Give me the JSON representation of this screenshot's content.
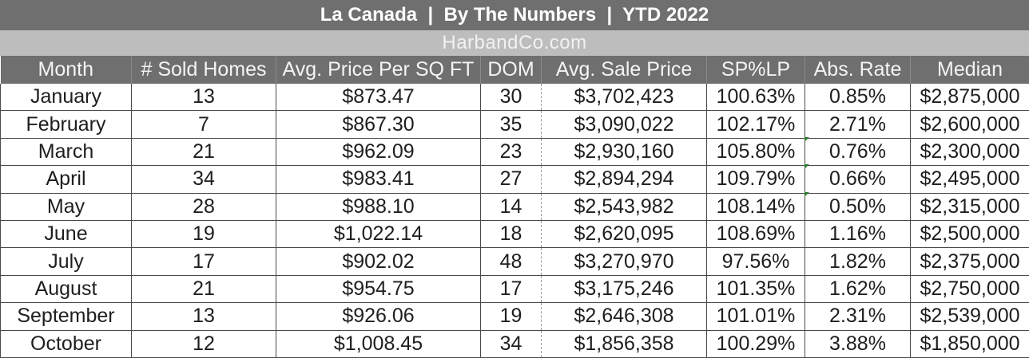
{
  "title": "La Canada  |  By The Numbers  |  YTD 2022",
  "subtitle": "HarbandCo.com",
  "columns": [
    "Month",
    "# Sold Homes",
    "Avg. Price Per SQ FT",
    "DOM",
    "Avg. Sale Price",
    "SP%LP",
    "Abs. Rate",
    "Median"
  ],
  "rows": [
    [
      "January",
      "13",
      "$873.47",
      "30",
      "$3,702,423",
      "100.63%",
      "0.85%",
      "$2,875,000"
    ],
    [
      "February",
      "7",
      "$867.30",
      "35",
      "$3,090,022",
      "102.17%",
      "2.71%",
      "$2,600,000"
    ],
    [
      "March",
      "21",
      "$962.09",
      "23",
      "$2,930,160",
      "105.80%",
      "0.76%",
      "$2,300,000"
    ],
    [
      "April",
      "34",
      "$983.41",
      "27",
      "$2,894,294",
      "109.79%",
      "0.66%",
      "$2,495,000"
    ],
    [
      "May",
      "28",
      "$988.10",
      "14",
      "$2,543,982",
      "108.14%",
      "0.50%",
      "$2,315,000"
    ],
    [
      "June",
      "19",
      "$1,022.14",
      "18",
      "$2,620,095",
      "108.69%",
      "1.16%",
      "$2,500,000"
    ],
    [
      "July",
      "17",
      "$902.02",
      "48",
      "$3,270,970",
      "97.56%",
      "1.82%",
      "$2,375,000"
    ],
    [
      "August",
      "21",
      "$954.75",
      "17",
      "$3,175,246",
      "101.35%",
      "1.62%",
      "$2,750,000"
    ],
    [
      "September",
      "13",
      "$926.06",
      "19",
      "$2,646,308",
      "101.01%",
      "2.31%",
      "$2,539,000"
    ],
    [
      "October",
      "12",
      "$1,008.45",
      "34",
      "$1,856,358",
      "100.29%",
      "3.88%",
      "$1,850,000"
    ]
  ]
}
